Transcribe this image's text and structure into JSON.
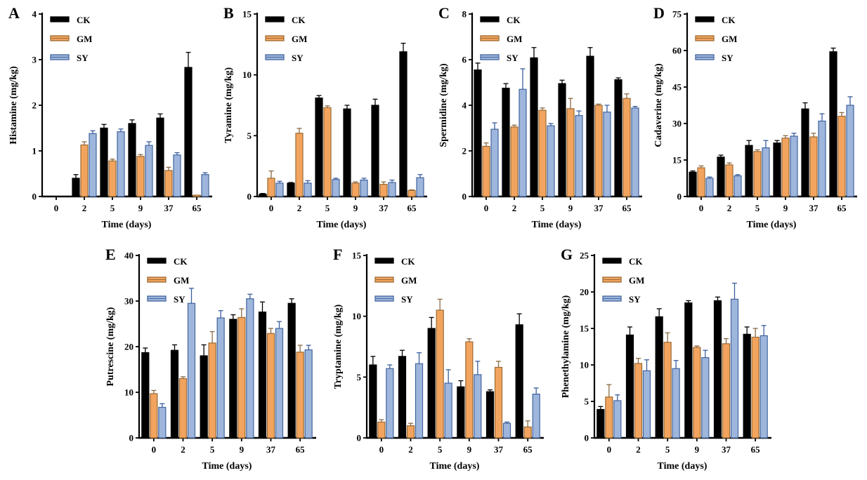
{
  "figure": {
    "description": "Biogenic amine concentrations (mg/kg) over fermentation time for three groups",
    "x_label": "Time (days)"
  },
  "chart_data": {
    "type": "bar",
    "categories": [
      "0",
      "2",
      "5",
      "9",
      "37",
      "65"
    ],
    "xlabel": "Time (days)",
    "legend": {
      "position": "top-left-inside",
      "entries": [
        {
          "label": "CK",
          "fill": "#000000",
          "stroke": "#000000",
          "error": "#000000"
        },
        {
          "label": "GM",
          "fill": "#F2A45F",
          "stroke": "#9A6A33",
          "error": "#8A6A45"
        },
        {
          "label": "SY",
          "fill": "#9FB6DC",
          "stroke": "#41639E",
          "error": "#3B5E9D"
        }
      ]
    },
    "grid": false,
    "charts": [
      {
        "panel": "A",
        "ylabel": "Histamine (mg/kg)",
        "ylim": [
          0,
          4
        ],
        "yticks": [
          0,
          1,
          2,
          3,
          4
        ],
        "series": [
          {
            "name": "CK",
            "values": [
              0,
              0.4,
              1.5,
              1.6,
              1.72,
              2.83
            ],
            "errors": [
              0,
              0.08,
              0.08,
              0.08,
              0.09,
              0.33
            ]
          },
          {
            "name": "GM",
            "values": [
              0,
              1.13,
              0.78,
              0.88,
              0.57,
              0.03
            ],
            "errors": [
              0,
              0.07,
              0.04,
              0.04,
              0.07,
              0
            ]
          },
          {
            "name": "SY",
            "values": [
              0,
              1.38,
              1.42,
              1.12,
              0.91,
              0.48
            ],
            "errors": [
              0,
              0.06,
              0.06,
              0.08,
              0.05,
              0.04
            ]
          }
        ]
      },
      {
        "panel": "B",
        "ylabel": "Tyramine (mg/kg)",
        "ylim": [
          0,
          15
        ],
        "yticks": [
          0,
          5,
          10,
          15
        ],
        "series": [
          {
            "name": "CK",
            "values": [
              0.2,
              1.1,
              8.1,
              7.2,
              7.5,
              11.9
            ],
            "errors": [
              0.05,
              0.05,
              0.2,
              0.3,
              0.5,
              0.7
            ]
          },
          {
            "name": "GM",
            "values": [
              1.5,
              5.2,
              7.3,
              1.1,
              1.0,
              0.5
            ],
            "errors": [
              0.6,
              0.4,
              0.15,
              0.1,
              0.2,
              0.05
            ]
          },
          {
            "name": "SY",
            "values": [
              1.1,
              1.1,
              1.4,
              1.35,
              1.15,
              1.55
            ],
            "errors": [
              0.15,
              0.2,
              0.1,
              0.15,
              0.2,
              0.25
            ]
          }
        ]
      },
      {
        "panel": "C",
        "ylabel": "Spermidine (mg/kg)",
        "ylim": [
          0,
          8
        ],
        "yticks": [
          0,
          2,
          4,
          6,
          8
        ],
        "series": [
          {
            "name": "CK",
            "values": [
              5.55,
              4.75,
              6.08,
              4.95,
              6.15,
              5.12
            ],
            "errors": [
              0.3,
              0.2,
              0.45,
              0.15,
              0.38,
              0.08
            ]
          },
          {
            "name": "GM",
            "values": [
              2.2,
              3.05,
              3.78,
              3.85,
              4.0,
              4.3
            ],
            "errors": [
              0.15,
              0.08,
              0.1,
              0.45,
              0.05,
              0.2
            ]
          },
          {
            "name": "SY",
            "values": [
              2.95,
              4.7,
              3.1,
              3.55,
              3.7,
              3.88
            ],
            "errors": [
              0.28,
              0.9,
              0.1,
              0.2,
              0.3,
              0.07
            ]
          }
        ]
      },
      {
        "panel": "D",
        "ylabel": "Cadaverine (mg/kg)",
        "ylim": [
          0,
          75
        ],
        "yticks": [
          0,
          15,
          30,
          45,
          60,
          75
        ],
        "series": [
          {
            "name": "CK",
            "values": [
              10,
              16.2,
              21,
              22,
              36,
              59.5
            ],
            "errors": [
              0.5,
              0.8,
              2,
              1,
              2.5,
              1.5
            ]
          },
          {
            "name": "GM",
            "values": [
              11.8,
              13,
              18.5,
              24,
              24.5,
              33
            ],
            "errors": [
              0.8,
              0.8,
              0.7,
              1,
              1.5,
              1.5
            ]
          },
          {
            "name": "SY",
            "values": [
              7.5,
              8.5,
              20,
              24.8,
              31,
              37.5
            ],
            "errors": [
              0.5,
              0.5,
              3,
              1.2,
              3,
              3.5
            ]
          }
        ]
      },
      {
        "panel": "E",
        "ylabel": "Putrescine (mg/kg)",
        "ylim": [
          0,
          40
        ],
        "yticks": [
          0,
          10,
          20,
          30,
          40
        ],
        "series": [
          {
            "name": "CK",
            "values": [
              18.7,
              19.2,
              18.0,
              26.0,
              27.6,
              29.5
            ],
            "errors": [
              1.0,
              1.2,
              2.4,
              1.0,
              2.2,
              1.0
            ]
          },
          {
            "name": "GM",
            "values": [
              9.7,
              13.0,
              20.8,
              26.4,
              22.9,
              18.8
            ],
            "errors": [
              0.7,
              0.4,
              2.5,
              1.9,
              1.1,
              1.5
            ]
          },
          {
            "name": "SY",
            "values": [
              6.7,
              29.5,
              26.3,
              30.5,
              24.0,
              19.3
            ],
            "errors": [
              0.8,
              3.3,
              1.6,
              1.0,
              1.5,
              1.0
            ]
          }
        ]
      },
      {
        "panel": "F",
        "ylabel": "Tryptamine (mg/kg)",
        "ylim": [
          0,
          15
        ],
        "yticks": [
          0,
          5,
          10,
          15
        ],
        "series": [
          {
            "name": "CK",
            "values": [
              6.0,
              6.7,
              9.0,
              4.2,
              3.8,
              9.3
            ],
            "errors": [
              0.7,
              0.5,
              0.9,
              0.5,
              0.15,
              0.9
            ]
          },
          {
            "name": "GM",
            "values": [
              1.3,
              1.0,
              10.5,
              7.9,
              5.8,
              0.9
            ],
            "errors": [
              0.2,
              0.2,
              0.9,
              0.25,
              0.5,
              0.5
            ]
          },
          {
            "name": "SY",
            "values": [
              5.7,
              6.1,
              4.5,
              5.2,
              1.2,
              3.6
            ],
            "errors": [
              0.3,
              0.9,
              1.1,
              1.1,
              0.1,
              0.5
            ]
          }
        ]
      },
      {
        "panel": "G",
        "ylabel": "Phenethylamine (mg/kg)",
        "ylim": [
          0,
          25
        ],
        "yticks": [
          0,
          5,
          10,
          15,
          20,
          25
        ],
        "series": [
          {
            "name": "CK",
            "values": [
              3.9,
              14.1,
              16.6,
              18.5,
              18.8,
              14.2
            ],
            "errors": [
              0.4,
              1.1,
              1.1,
              0.3,
              0.5,
              1.0
            ]
          },
          {
            "name": "GM",
            "values": [
              5.6,
              10.2,
              13.1,
              12.4,
              12.9,
              13.8
            ],
            "errors": [
              1.7,
              0.7,
              1.3,
              0.2,
              0.7,
              1.2
            ]
          },
          {
            "name": "SY",
            "values": [
              5.1,
              9.2,
              9.5,
              11.0,
              19.0,
              14.0
            ],
            "errors": [
              0.8,
              1.5,
              1.1,
              1.0,
              2.2,
              1.4
            ]
          }
        ]
      }
    ]
  }
}
